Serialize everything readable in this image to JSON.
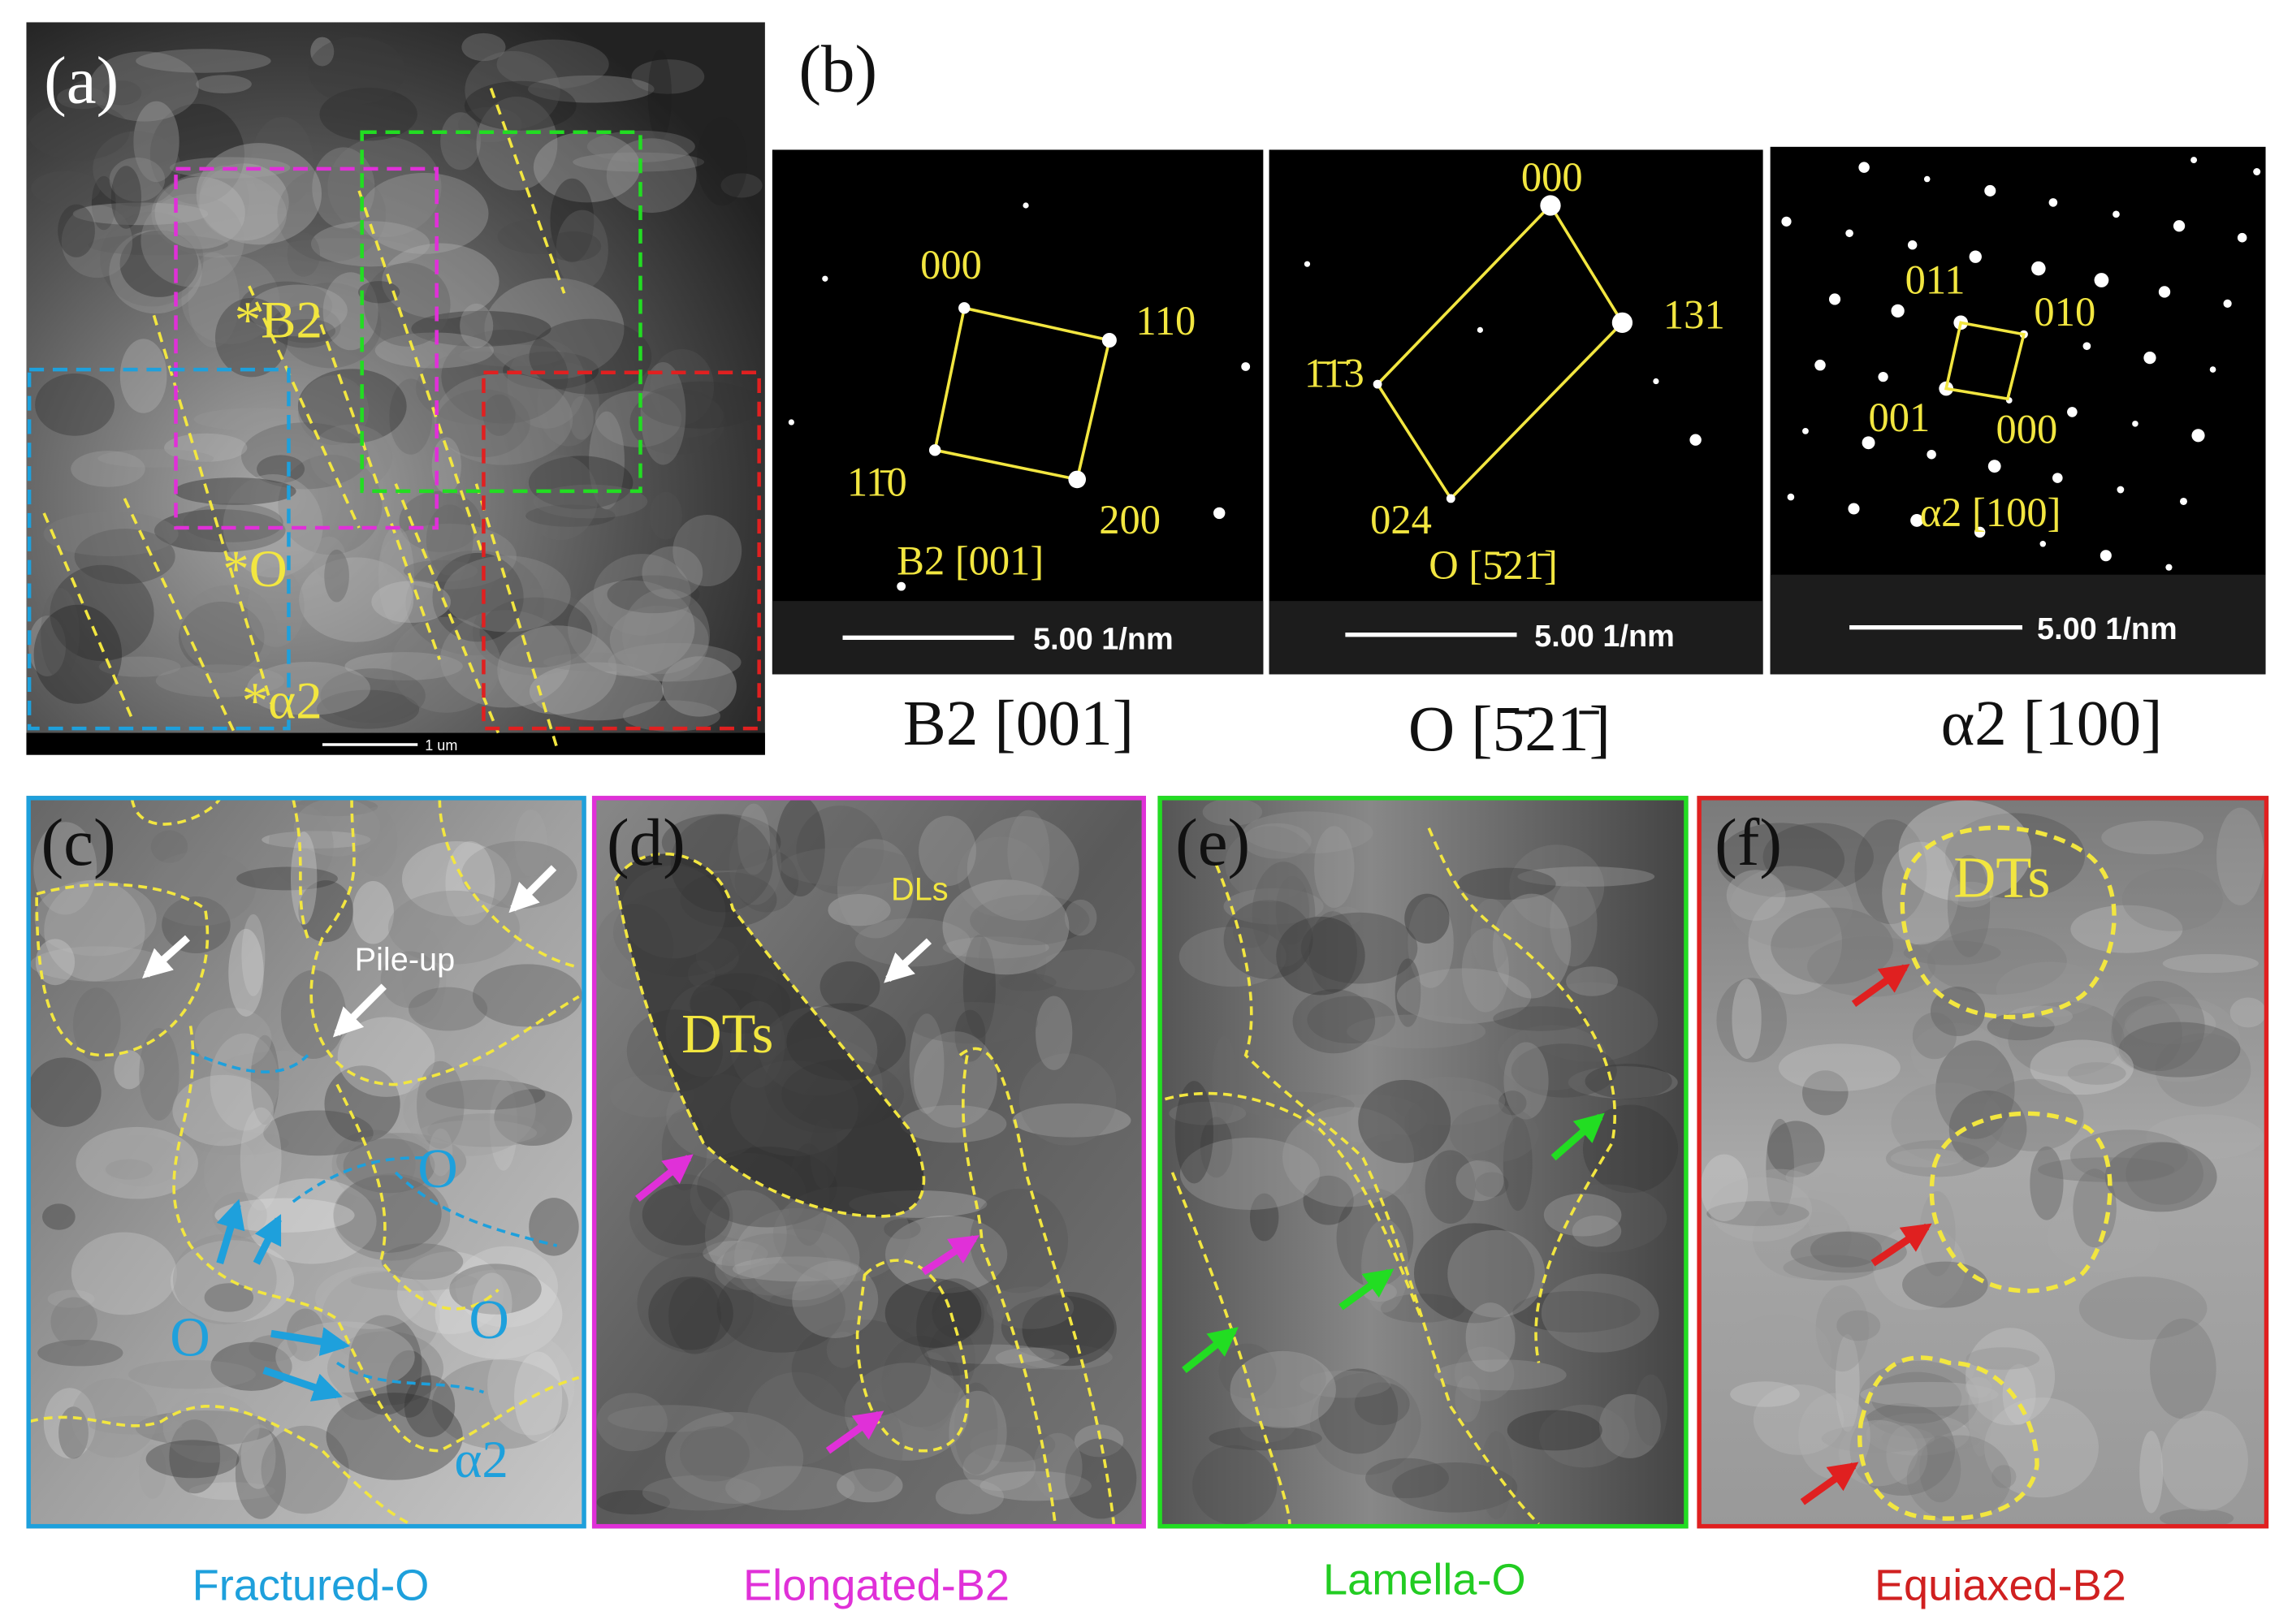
{
  "panels": {
    "a": {
      "label": "(a)",
      "phases": [
        "*B2",
        "*O",
        "*α2"
      ],
      "scale_bar": "1 um"
    },
    "b": {
      "label": "(b)",
      "patterns": [
        {
          "spots": [
            "000",
            "110",
            "11̄0",
            "200"
          ],
          "zone": "B2 [001]",
          "scale_bar": "5.00 1/nm",
          "caption": "B2 [001]"
        },
        {
          "spots": [
            "000",
            "131",
            "1̄1̄3",
            "024"
          ],
          "zone": "O [5̄21̄]",
          "scale_bar": "5.00 1/nm",
          "caption": "O [5̄21̄]"
        },
        {
          "spots": [
            "011",
            "010",
            "001",
            "000"
          ],
          "zone": "α2 [100]",
          "scale_bar": "5.00 1/nm",
          "caption": "α2 [100]"
        }
      ]
    },
    "c": {
      "label": "(c)",
      "annotations": [
        "Pile-up",
        "O",
        "O",
        "O",
        "α2"
      ],
      "caption": "Fractured-O"
    },
    "d": {
      "label": "(d)",
      "annotations": [
        "DLs",
        "DTs"
      ],
      "caption": "Elongated-B2"
    },
    "e": {
      "label": "(e)",
      "caption": "Lamella-O"
    },
    "f": {
      "label": "(f)",
      "annotations": [
        "DTs"
      ],
      "caption": "Equiaxed-B2"
    }
  }
}
